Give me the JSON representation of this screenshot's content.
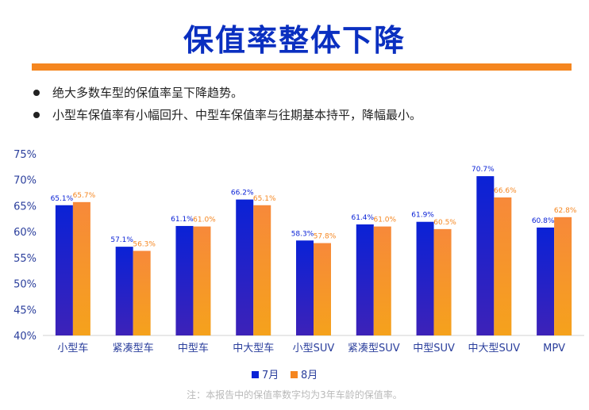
{
  "slide": {
    "title": "保值率整体下降",
    "bullets": [
      "绝大多数车型的保值率呈下降趋势。",
      "小型车保值率有小幅回升、中型车保值率与往期基本持平，降幅最小。"
    ],
    "note": "注：本报告中的保值率数字均为3年车龄的保值率。"
  },
  "colors": {
    "accent": "#f5861f",
    "title": "#0a2fc0",
    "series_july": "#0a22d6",
    "series_aug": "#f5861f",
    "axis_text": "#2a3e9c"
  },
  "chart_data": {
    "type": "bar",
    "categories": [
      "小型车",
      "紧凑型车",
      "中型车",
      "中大型车",
      "小型SUV",
      "紧凑型SUV",
      "中型SUV",
      "中大型SUV",
      "MPV"
    ],
    "series": [
      {
        "name": "7月",
        "values": [
          65.1,
          57.1,
          61.1,
          66.2,
          58.3,
          61.4,
          61.9,
          70.7,
          60.8
        ],
        "labels": [
          "65.1%",
          "57.1%",
          "61.1%",
          "66.2%",
          "58.3%",
          "61.4%",
          "61.9%",
          "70.7%",
          "60.8%"
        ]
      },
      {
        "name": "8月",
        "values": [
          65.7,
          56.3,
          61.0,
          65.1,
          57.8,
          61.0,
          60.5,
          66.6,
          62.8
        ],
        "labels": [
          "65.7%",
          "56.3%",
          "61.0%",
          "65.1%",
          "57.8%",
          "61.0%",
          "60.5%",
          "66.6%",
          "62.8%"
        ]
      }
    ],
    "yticks": [
      40,
      45,
      50,
      55,
      60,
      65,
      70,
      75
    ],
    "ytick_labels": [
      "40%",
      "45%",
      "50%",
      "55%",
      "60%",
      "65%",
      "70%",
      "75%"
    ],
    "ylim": [
      40,
      75
    ],
    "grid": false,
    "legend_position": "bottom-center"
  }
}
